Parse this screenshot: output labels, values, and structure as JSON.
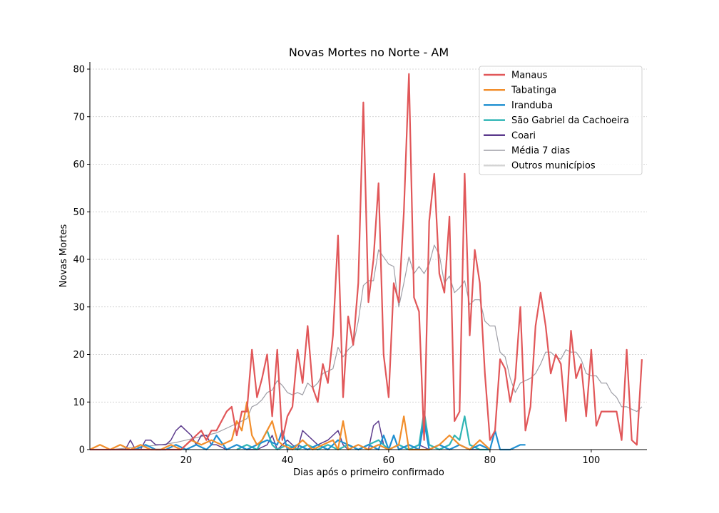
{
  "chart_data": {
    "type": "line",
    "title": "Novas Mortes no Norte - AM",
    "xlabel": "Dias após o primeiro confirmado",
    "ylabel": "Novas Mortes",
    "xlim": [
      1,
      111
    ],
    "ylim": [
      0,
      81.5
    ],
    "xticks": [
      20,
      40,
      60,
      80,
      100
    ],
    "yticks": [
      0,
      10,
      20,
      30,
      40,
      50,
      60,
      70,
      80
    ],
    "grid": "horizontal dashed",
    "legend_position": "top-right",
    "series": [
      {
        "name": "Manaus",
        "color": "#e15759",
        "x": [
          1,
          2,
          3,
          4,
          5,
          6,
          7,
          8,
          9,
          10,
          11,
          12,
          13,
          14,
          15,
          16,
          17,
          18,
          19,
          20,
          21,
          22,
          23,
          24,
          25,
          26,
          27,
          28,
          29,
          30,
          31,
          32,
          33,
          34,
          35,
          36,
          37,
          38,
          39,
          40,
          41,
          42,
          43,
          44,
          45,
          46,
          47,
          48,
          49,
          50,
          51,
          52,
          53,
          54,
          55,
          56,
          57,
          58,
          59,
          60,
          61,
          62,
          63,
          64,
          65,
          66,
          67,
          68,
          69,
          70,
          71,
          72,
          73,
          74,
          75,
          76,
          77,
          78,
          79,
          80,
          81,
          82,
          83,
          84,
          85,
          86,
          87,
          88,
          89,
          90,
          91,
          92,
          93,
          94,
          95,
          96,
          97,
          98,
          99,
          100,
          101,
          102,
          103,
          104,
          105,
          106,
          107,
          108,
          109,
          110
        ],
        "values": [
          0,
          0,
          0,
          0,
          0,
          0,
          0,
          0,
          0,
          0,
          0,
          0,
          0,
          0,
          0,
          0,
          0,
          0,
          0,
          1,
          2,
          3,
          4,
          2,
          4,
          4,
          6,
          8,
          9,
          3,
          8,
          8,
          21,
          11,
          15,
          20,
          7,
          21,
          2,
          7,
          9,
          21,
          14,
          26,
          13,
          10,
          18,
          14,
          24,
          45,
          11,
          28,
          22,
          35,
          73,
          31,
          40,
          56,
          20,
          11,
          35,
          31,
          50,
          79,
          32,
          29,
          2,
          48,
          58,
          37,
          33,
          49,
          6,
          8,
          58,
          24,
          42,
          35,
          16,
          2,
          4,
          19,
          17,
          10,
          15,
          30,
          4,
          9,
          26,
          33,
          26,
          16,
          20,
          18,
          6,
          25,
          15,
          18,
          7,
          21,
          5,
          8,
          8,
          8,
          8,
          2,
          21,
          2,
          1,
          19
        ]
      },
      {
        "name": "Tabatinga",
        "color": "#f28e2b",
        "x": [
          1,
          3,
          5,
          7,
          9,
          11,
          13,
          15,
          17,
          19,
          21,
          23,
          25,
          27,
          29,
          30,
          31,
          32,
          33,
          34,
          35,
          36,
          37,
          38,
          39,
          41,
          43,
          45,
          47,
          49,
          50,
          51,
          52,
          54,
          56,
          58,
          60,
          62,
          63,
          64,
          66,
          68,
          70,
          72,
          74,
          76,
          78,
          80
        ],
        "values": [
          0,
          1,
          0,
          1,
          0,
          1,
          0,
          0,
          1,
          0,
          2,
          1,
          2,
          1,
          2,
          6,
          4,
          10,
          3,
          1,
          2,
          4,
          6,
          2,
          1,
          0,
          2,
          0,
          1,
          2,
          0,
          6,
          0,
          1,
          0,
          1,
          0,
          1,
          7,
          0,
          0,
          0,
          1,
          3,
          1,
          0,
          2,
          0
        ]
      },
      {
        "name": "Iranduba",
        "color": "#1f8fd1",
        "x": [
          10,
          12,
          14,
          16,
          18,
          20,
          22,
          24,
          25,
          26,
          28,
          30,
          32,
          34,
          36,
          38,
          39,
          40,
          42,
          44,
          46,
          48,
          50,
          52,
          54,
          56,
          58,
          59,
          60,
          61,
          62,
          64,
          66,
          67,
          68,
          70,
          72,
          74,
          76,
          78,
          80,
          81,
          82,
          84,
          86,
          87
        ],
        "values": [
          0,
          1,
          0,
          0,
          1,
          0,
          1,
          0,
          1,
          3,
          0,
          1,
          0,
          1,
          2,
          1,
          4,
          0,
          1,
          0,
          1,
          0,
          2,
          1,
          0,
          1,
          0,
          3,
          0,
          3,
          0,
          1,
          0,
          6,
          0,
          1,
          0,
          1,
          0,
          1,
          0,
          4,
          0,
          0,
          1,
          1
        ]
      },
      {
        "name": "São Gabriel da Cachoeira",
        "color": "#2fb5b5",
        "x": [
          30,
          32,
          34,
          35,
          36,
          37,
          38,
          40,
          42,
          44,
          46,
          48,
          50,
          52,
          54,
          56,
          58,
          60,
          62,
          64,
          66,
          67,
          68,
          70,
          72,
          73,
          74,
          75,
          76,
          78,
          80
        ],
        "values": [
          0,
          1,
          0,
          2,
          4,
          1,
          0,
          1,
          0,
          1,
          0,
          1,
          0,
          1,
          0,
          1,
          2,
          0,
          1,
          0,
          1,
          8,
          1,
          0,
          1,
          3,
          2,
          7,
          1,
          0,
          0
        ]
      },
      {
        "name": "Coari",
        "color": "#5b3a8c",
        "x": [
          8,
          9,
          10,
          11,
          12,
          13,
          14,
          15,
          16,
          17,
          18,
          19,
          20,
          21,
          22,
          23,
          24,
          25,
          26,
          28,
          30,
          32,
          34,
          36,
          37,
          38,
          40,
          42,
          43,
          44,
          46,
          48,
          49,
          50,
          51,
          52,
          54,
          56,
          57,
          58,
          59,
          60,
          62,
          64,
          66,
          68,
          70,
          72,
          74,
          76,
          78
        ],
        "values": [
          0,
          2,
          0,
          0,
          2,
          2,
          1,
          1,
          1,
          2,
          4,
          5,
          4,
          3,
          1,
          3,
          3,
          1,
          1,
          0,
          1,
          0,
          0,
          1,
          3,
          0,
          2,
          0,
          4,
          3,
          1,
          2,
          3,
          4,
          1,
          0,
          1,
          0,
          5,
          6,
          1,
          0,
          1,
          0,
          1,
          0,
          1,
          0,
          1,
          0,
          0
        ]
      },
      {
        "name": "Média 7 dias",
        "color": "#9e9ea6",
        "x": [
          1,
          5,
          10,
          15,
          18,
          20,
          22,
          24,
          26,
          28,
          30,
          32,
          33,
          34,
          35,
          36,
          37,
          38,
          39,
          40,
          41,
          42,
          43,
          44,
          45,
          46,
          47,
          48,
          49,
          50,
          51,
          52,
          53,
          54,
          55,
          56,
          57,
          58,
          59,
          60,
          61,
          62,
          63,
          64,
          65,
          66,
          67,
          68,
          69,
          70,
          71,
          72,
          73,
          74,
          75,
          76,
          77,
          78,
          79,
          80,
          81,
          82,
          83,
          84,
          85,
          86,
          87,
          88,
          89,
          90,
          91,
          92,
          93,
          94,
          95,
          96,
          97,
          98,
          99,
          100,
          101,
          102,
          103,
          104,
          105,
          106,
          107,
          108,
          109,
          110
        ],
        "values": [
          0,
          0,
          0.5,
          1,
          1.5,
          2,
          2.5,
          3,
          3.5,
          4.5,
          5.5,
          6.5,
          9,
          9.5,
          10.5,
          12,
          12.5,
          14.5,
          13.5,
          12,
          11.5,
          12,
          11.5,
          14,
          13,
          14,
          16,
          16.5,
          17,
          21.5,
          19.5,
          21,
          22,
          27,
          34.5,
          35.5,
          35.5,
          42,
          40.5,
          39,
          38.5,
          30,
          35,
          40.5,
          37,
          38.5,
          37,
          39,
          43,
          41,
          35,
          36.5,
          33,
          34,
          35.5,
          30.5,
          31.5,
          31.5,
          27,
          26,
          26,
          20.5,
          19.5,
          15,
          12,
          14,
          14.5,
          15,
          16,
          18,
          20.5,
          20.5,
          19.5,
          19,
          21,
          20.5,
          20.5,
          19,
          16,
          15.5,
          15.5,
          14,
          14,
          12,
          11,
          9,
          9,
          8.5,
          8,
          9
        ]
      },
      {
        "name": "Outros municípios",
        "color": "#d4d4d4",
        "x": [
          1,
          2,
          3,
          4,
          5,
          6,
          7,
          8,
          9,
          10,
          11,
          12,
          13,
          14,
          15,
          16,
          17,
          18,
          19,
          20,
          22,
          24,
          26,
          28,
          30,
          32,
          34,
          36,
          38,
          40,
          42,
          44,
          46,
          48,
          50,
          52,
          54,
          56,
          58,
          60,
          62,
          64,
          66,
          68,
          70,
          72,
          74,
          76,
          78,
          80,
          82,
          84,
          86,
          88,
          90,
          92,
          94,
          96,
          98,
          100,
          101
        ],
        "values": [
          1,
          0,
          1,
          0,
          0,
          1,
          0,
          1,
          0,
          0,
          3,
          0,
          4,
          0,
          1,
          3,
          0,
          2,
          0,
          1,
          3,
          2,
          1,
          1,
          0,
          1,
          1,
          4,
          2,
          0,
          3,
          1,
          5,
          1,
          0,
          1,
          2,
          3,
          1,
          2,
          5,
          6,
          1,
          0,
          6,
          2,
          0,
          1,
          0,
          2,
          1,
          0,
          0,
          1,
          0,
          2,
          1,
          0,
          1,
          1,
          3
        ]
      }
    ]
  }
}
